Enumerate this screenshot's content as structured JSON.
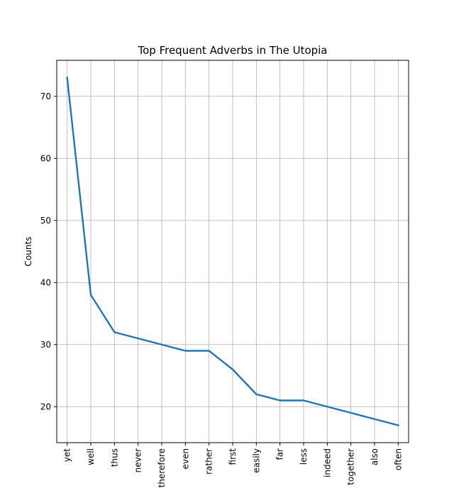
{
  "chart_data": {
    "type": "line",
    "title": "Top Frequent Adverbs in The Utopia",
    "xlabel": "",
    "ylabel": "Counts",
    "categories": [
      "yet",
      "well",
      "thus",
      "never",
      "therefore",
      "even",
      "rather",
      "first",
      "easily",
      "far",
      "less",
      "indeed",
      "together",
      "also",
      "often"
    ],
    "series": [
      {
        "values": [
          73,
          38,
          32,
          31,
          30,
          29,
          29,
          26,
          22,
          21,
          21,
          20,
          19,
          18,
          17
        ]
      }
    ],
    "ylim": [
      14.2,
      75.8
    ],
    "yticks": [
      20,
      30,
      40,
      50,
      60,
      70
    ],
    "grid": true,
    "line_color": "#1f77b4",
    "grid_color": "#b0b0b0"
  }
}
